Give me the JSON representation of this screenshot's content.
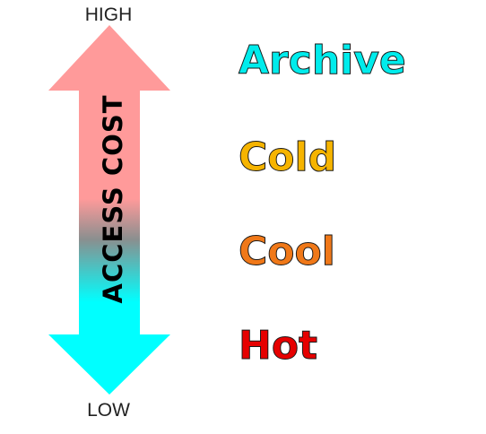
{
  "scale": {
    "high_label": "HIGH",
    "low_label": "LOW",
    "axis_title": "ACCESS COST",
    "gradient_colors": {
      "top": "#ff9a9a",
      "middle": "#ff9a9a",
      "bottom": "#00ffff"
    }
  },
  "tiers": [
    {
      "label": "Archive",
      "color": "#00ecec"
    },
    {
      "label": "Cold",
      "color": "#f6b400"
    },
    {
      "label": "Cool",
      "color": "#f07818"
    },
    {
      "label": "Hot",
      "color": "#e60000"
    }
  ]
}
